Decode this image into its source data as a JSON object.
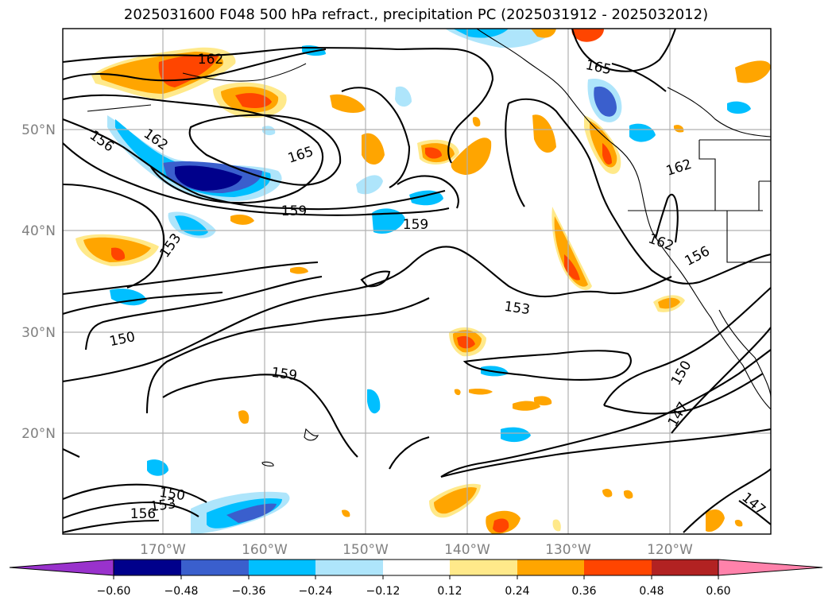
{
  "title": "2025031600 F048 500 hPa refract., precipitation PC (2025031912 - 2025032012)",
  "lat_labels": [
    "50°N",
    "40°N",
    "30°N",
    "20°N"
  ],
  "lon_labels": [
    "170°W",
    "160°W",
    "150°W",
    "140°W",
    "130°W",
    "120°W"
  ],
  "contour_labels": [
    "162",
    "165",
    "156",
    "162",
    "165",
    "159",
    "159",
    "153",
    "162",
    "162",
    "156",
    "153",
    "150",
    "159",
    "150",
    "147",
    "150",
    "153",
    "156",
    "147"
  ],
  "colorbar": {
    "tick_labels": [
      "−0.60",
      "−0.48",
      "−0.36",
      "−0.24",
      "−0.12",
      "0.12",
      "0.24",
      "0.36",
      "0.48",
      "0.60"
    ],
    "colors": [
      "#9932cc",
      "#00008b",
      "#3a5fcd",
      "#00bfff",
      "#aee5fb",
      "#ffffff",
      "#ffe98a",
      "#ffa500",
      "#ff4500",
      "#b22222",
      "#ff82ab"
    ]
  },
  "legend_colors": {
    "light_blue": "#aee5fb",
    "sky": "#00bfff",
    "mid_blue": "#3a5fcd",
    "navy": "#00008b",
    "yellow": "#ffe98a",
    "orange": "#ffa500",
    "red_orange": "#ff4500"
  }
}
